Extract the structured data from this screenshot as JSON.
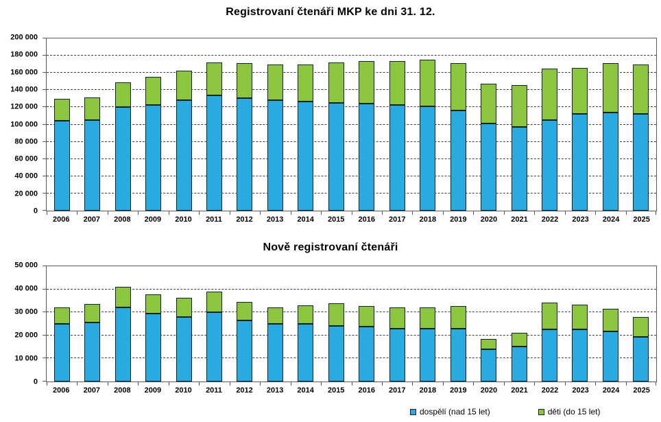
{
  "colors": {
    "adults": "#29abe2",
    "children": "#8cc63e",
    "bar_border": "#10222e",
    "axis": "#595959",
    "grid": "#3d3d3d",
    "background": "#ffffff"
  },
  "legend": {
    "items": [
      {
        "label": "dospělí (nad 15 let)",
        "color": "#29abe2"
      },
      {
        "label": "děti (do 15 let)",
        "color": "#8cc63e"
      }
    ]
  },
  "chart_data": [
    {
      "type": "bar",
      "stacked": true,
      "title": "Registrovaní čtenáři MKP ke dni 31. 12.",
      "categories": [
        "2006",
        "2007",
        "2008",
        "2009",
        "2010",
        "2011",
        "2012",
        "2013",
        "2014",
        "2015",
        "2016",
        "2017",
        "2018",
        "2019",
        "2020",
        "2021",
        "2022",
        "2023",
        "2024",
        "2025"
      ],
      "series": [
        {
          "name": "dospělí (nad 15 let)",
          "color": "#29abe2",
          "values": [
            104000,
            105000,
            120500,
            123000,
            128000,
            134000,
            131000,
            128000,
            126500,
            125500,
            124500,
            122500,
            121500,
            116000,
            101000,
            97000,
            105000,
            112000,
            114000,
            112000
          ]
        },
        {
          "name": "děti (do 15 let)",
          "color": "#8cc63e",
          "values": [
            26000,
            26500,
            28500,
            32000,
            34500,
            38000,
            40000,
            41500,
            43500,
            46500,
            49500,
            51500,
            53500,
            55000,
            46500,
            48500,
            60000,
            54000,
            57000,
            57500
          ]
        }
      ],
      "ylim": [
        0,
        200000
      ],
      "ytick": 20000,
      "ytick_labels": [
        "0",
        "20 000",
        "40 000",
        "60 000",
        "80 000",
        "100 000",
        "120 000",
        "140 000",
        "160 000",
        "180 000",
        "200 000"
      ],
      "grid": true,
      "legend_position": "bottom"
    },
    {
      "type": "bar",
      "stacked": true,
      "title": "Nově registrovaní čtenáři",
      "categories": [
        "2006",
        "2007",
        "2008",
        "2009",
        "2010",
        "2011",
        "2012",
        "2013",
        "2014",
        "2015",
        "2016",
        "2017",
        "2018",
        "2019",
        "2020",
        "2021",
        "2022",
        "2023",
        "2024",
        "2025"
      ],
      "series": [
        {
          "name": "dospělí (nad 15 let)",
          "color": "#29abe2",
          "values": [
            25000,
            25700,
            32000,
            29500,
            28000,
            30000,
            26500,
            25000,
            25100,
            24200,
            23700,
            22900,
            22800,
            22900,
            14000,
            15300,
            22700,
            22700,
            21800,
            19400
          ]
        },
        {
          "name": "děti (do 15 let)",
          "color": "#8cc63e",
          "values": [
            7200,
            7800,
            9000,
            8300,
            8400,
            9000,
            8000,
            7200,
            7900,
            9600,
            9000,
            9200,
            9500,
            9800,
            4500,
            5700,
            11400,
            10600,
            9900,
            8600
          ]
        }
      ],
      "ylim": [
        0,
        50000
      ],
      "ytick": 10000,
      "ytick_labels": [
        "0",
        "10 000",
        "20 000",
        "30 000",
        "40 000",
        "50 000"
      ],
      "grid": true,
      "legend_position": "bottom"
    }
  ]
}
